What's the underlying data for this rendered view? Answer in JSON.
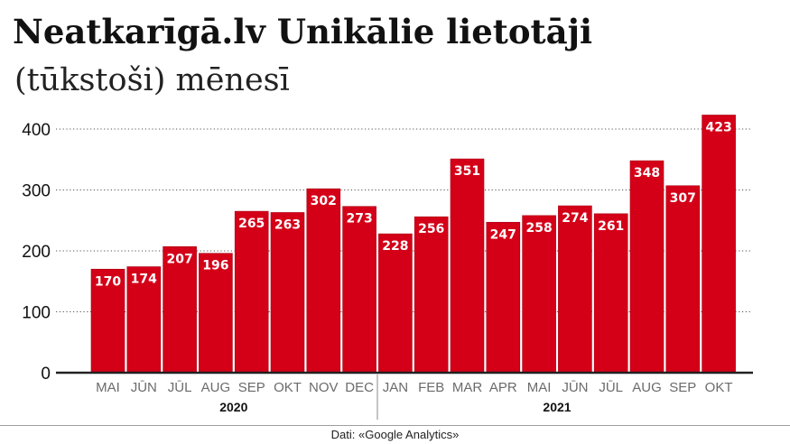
{
  "title": "Neatkarīgā.lv Unikālie lietotāji",
  "subtitle": "(tūkstoši) mēnesī",
  "source": "Dati: «Google Analytics»",
  "colors": {
    "bar": "#d40018",
    "bar_edge": "#a80012",
    "label": "#ffffff",
    "axis": "#222222",
    "grid": "#555555"
  },
  "chart_data": {
    "type": "bar",
    "categories": [
      "MAI",
      "JŪN",
      "JŪL",
      "AUG",
      "SEP",
      "OKT",
      "NOV",
      "DEC",
      "JAN",
      "FEB",
      "MAR",
      "APR",
      "MAI",
      "JŪN",
      "JŪL",
      "AUG",
      "SEP",
      "OKT"
    ],
    "values": [
      170,
      174,
      207,
      196,
      265,
      263,
      302,
      273,
      228,
      256,
      351,
      247,
      258,
      274,
      261,
      348,
      307,
      423
    ],
    "year_groups": [
      {
        "label": "2020",
        "start": 0,
        "end": 7
      },
      {
        "label": "2021",
        "start": 8,
        "end": 17
      }
    ],
    "y_ticks": [
      0,
      100,
      200,
      300,
      400
    ],
    "ylim": [
      0,
      440
    ],
    "grid": true,
    "data_labels": true
  }
}
